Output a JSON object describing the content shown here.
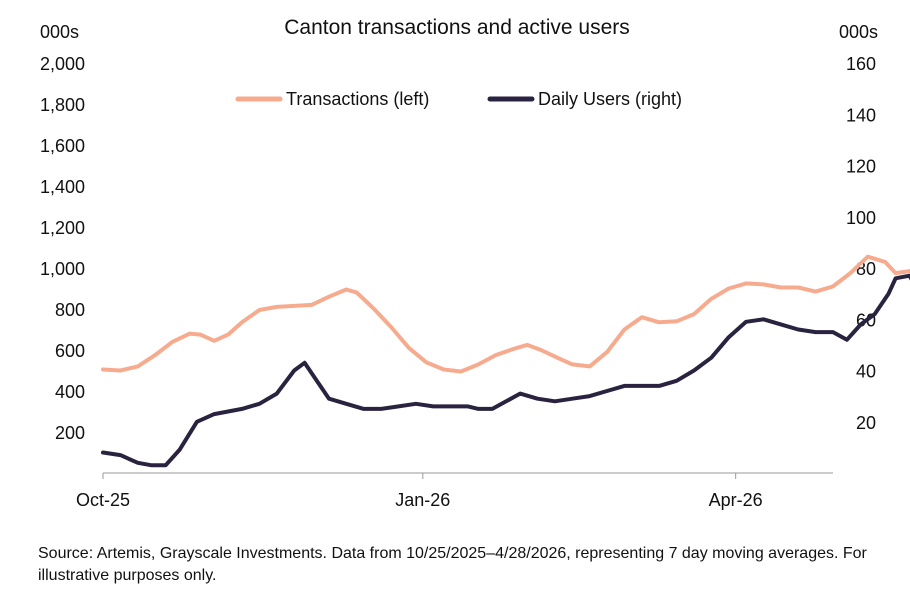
{
  "chart_data": {
    "type": "line",
    "title": "Canton transactions and active users",
    "y_left_unit": "000s",
    "y_right_unit": "000s",
    "y_left_ticks": [
      "2,000",
      "1,800",
      "1,600",
      "1,400",
      "1,200",
      "1,000",
      "800",
      "600",
      "400",
      "200"
    ],
    "y_right_ticks": [
      "160",
      "140",
      "120",
      "100",
      "80",
      "60",
      "40",
      "20"
    ],
    "x_ticks": [
      {
        "label": "Oct-25",
        "day": 0
      },
      {
        "label": "Jan-26",
        "day": 92
      },
      {
        "label": "Apr-26",
        "day": 182
      }
    ],
    "ylim_left": [
      0,
      2000
    ],
    "ylim_right": [
      0,
      160
    ],
    "xlim_days": [
      0,
      210
    ],
    "legend_position": "top",
    "series": [
      {
        "name": "Transactions (left)",
        "axis": "left",
        "color": "#F7AB8E",
        "points": [
          [
            0,
            505
          ],
          [
            5,
            500
          ],
          [
            10,
            520
          ],
          [
            15,
            575
          ],
          [
            20,
            640
          ],
          [
            25,
            680
          ],
          [
            28,
            675
          ],
          [
            32,
            645
          ],
          [
            36,
            675
          ],
          [
            40,
            735
          ],
          [
            45,
            795
          ],
          [
            50,
            810
          ],
          [
            55,
            815
          ],
          [
            60,
            820
          ],
          [
            65,
            860
          ],
          [
            70,
            895
          ],
          [
            73,
            880
          ],
          [
            78,
            800
          ],
          [
            83,
            710
          ],
          [
            88,
            610
          ],
          [
            93,
            540
          ],
          [
            98,
            505
          ],
          [
            103,
            495
          ],
          [
            108,
            530
          ],
          [
            113,
            575
          ],
          [
            118,
            605
          ],
          [
            122,
            625
          ],
          [
            126,
            600
          ],
          [
            131,
            560
          ],
          [
            135,
            530
          ],
          [
            140,
            520
          ],
          [
            145,
            590
          ],
          [
            150,
            700
          ],
          [
            155,
            760
          ],
          [
            160,
            735
          ],
          [
            165,
            740
          ],
          [
            170,
            775
          ],
          [
            175,
            850
          ],
          [
            180,
            900
          ],
          [
            185,
            925
          ],
          [
            190,
            920
          ],
          [
            195,
            905
          ],
          [
            200,
            905
          ],
          [
            205,
            885
          ],
          [
            210,
            910
          ],
          [
            215,
            975
          ],
          [
            220,
            1055
          ],
          [
            225,
            1030
          ],
          [
            228,
            975
          ],
          [
            232,
            985
          ],
          [
            236,
            1010
          ],
          [
            240,
            1060
          ],
          [
            245,
            1110
          ],
          [
            250,
            1115
          ],
          [
            255,
            1070
          ],
          [
            260,
            1025
          ],
          [
            263,
            1020
          ],
          [
            268,
            1075
          ],
          [
            273,
            1150
          ],
          [
            278,
            1210
          ],
          [
            283,
            1290
          ],
          [
            287,
            1370
          ],
          [
            292,
            1395
          ],
          [
            295,
            1370
          ],
          [
            298,
            1280
          ],
          [
            302,
            1345
          ],
          [
            306,
            1510
          ],
          [
            310,
            1720
          ],
          [
            312,
            1815
          ]
        ]
      },
      {
        "name": "Daily Users (right)",
        "axis": "right",
        "color": "#2A2340",
        "points": [
          [
            0,
            8
          ],
          [
            5,
            7
          ],
          [
            10,
            4
          ],
          [
            14,
            3
          ],
          [
            18,
            3
          ],
          [
            22,
            9
          ],
          [
            27,
            20
          ],
          [
            32,
            23
          ],
          [
            36,
            24
          ],
          [
            40,
            25
          ],
          [
            45,
            27
          ],
          [
            50,
            31
          ],
          [
            55,
            40
          ],
          [
            58,
            43
          ],
          [
            62,
            35
          ],
          [
            65,
            29
          ],
          [
            70,
            27
          ],
          [
            75,
            25
          ],
          [
            80,
            25
          ],
          [
            85,
            26
          ],
          [
            90,
            27
          ],
          [
            95,
            26
          ],
          [
            100,
            26
          ],
          [
            105,
            26
          ],
          [
            108,
            25
          ],
          [
            112,
            25
          ],
          [
            116,
            28
          ],
          [
            120,
            31
          ],
          [
            125,
            29
          ],
          [
            130,
            28
          ],
          [
            135,
            29
          ],
          [
            140,
            30
          ],
          [
            145,
            32
          ],
          [
            150,
            34
          ],
          [
            155,
            34
          ],
          [
            160,
            34
          ],
          [
            165,
            36
          ],
          [
            170,
            40
          ],
          [
            175,
            45
          ],
          [
            180,
            53
          ],
          [
            185,
            59
          ],
          [
            190,
            60
          ],
          [
            195,
            58
          ],
          [
            200,
            56
          ],
          [
            205,
            55
          ],
          [
            210,
            55
          ],
          [
            214,
            52
          ],
          [
            218,
            58
          ],
          [
            222,
            62
          ],
          [
            226,
            70
          ],
          [
            228,
            76
          ],
          [
            232,
            77
          ],
          [
            235,
            70
          ],
          [
            238,
            69
          ],
          [
            240,
            70
          ],
          [
            243,
            76
          ],
          [
            246,
            85
          ],
          [
            249,
            87
          ],
          [
            252,
            88
          ],
          [
            256,
            78
          ],
          [
            260,
            70
          ],
          [
            263,
            66
          ],
          [
            266,
            65
          ],
          [
            269,
            64
          ],
          [
            272,
            63
          ],
          [
            275,
            65
          ],
          [
            278,
            66
          ],
          [
            281,
            67
          ],
          [
            284,
            69
          ],
          [
            287,
            72
          ],
          [
            290,
            80
          ],
          [
            293,
            100
          ],
          [
            296,
            115
          ],
          [
            299,
            120
          ],
          [
            302,
            125
          ],
          [
            305,
            127
          ],
          [
            308,
            135
          ]
        ]
      }
    ]
  },
  "source_note": "Source: Artemis, Grayscale Investments. Data from 10/25/2025–4/28/2026, representing 7 day moving averages. For illustrative purposes only."
}
